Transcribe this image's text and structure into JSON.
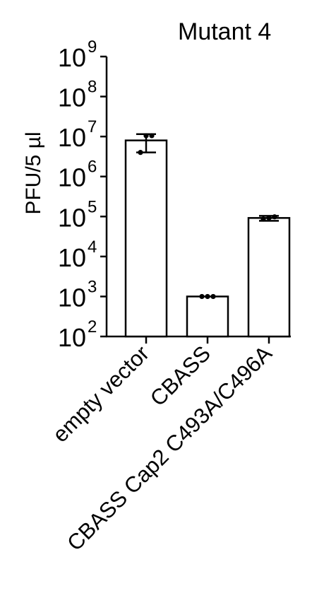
{
  "chart_data": {
    "type": "bar",
    "title": "Mutant 4",
    "ylabel": "PFU/5 µl",
    "xlabel": "",
    "yscale": "log",
    "ylim": [
      100,
      1000000000
    ],
    "y_ticks": [
      {
        "base": "10",
        "exp": "2",
        "value": 100
      },
      {
        "base": "10",
        "exp": "3",
        "value": 1000
      },
      {
        "base": "10",
        "exp": "4",
        "value": 10000
      },
      {
        "base": "10",
        "exp": "5",
        "value": 100000
      },
      {
        "base": "10",
        "exp": "6",
        "value": 1000000
      },
      {
        "base": "10",
        "exp": "7",
        "value": 10000000
      },
      {
        "base": "10",
        "exp": "8",
        "value": 100000000
      },
      {
        "base": "10",
        "exp": "9",
        "value": 1000000000
      }
    ],
    "categories": [
      "empty vector",
      "CBASS",
      "CBASS Cap2 C493A/C496A"
    ],
    "values": [
      8000000,
      1000,
      92000
    ],
    "error_bars": [
      {
        "low": 4000000,
        "high": 11500000
      },
      {
        "low": 1000,
        "high": 1000
      },
      {
        "low": 78000,
        "high": 104000
      }
    ],
    "points": [
      [
        4000000,
        10500000,
        10500000
      ],
      [
        1000,
        1000,
        1000
      ],
      [
        86000,
        92000,
        98000
      ]
    ],
    "bar_fill": "#ffffff",
    "stroke_color": "#000000",
    "grid": false,
    "legend": "none"
  }
}
